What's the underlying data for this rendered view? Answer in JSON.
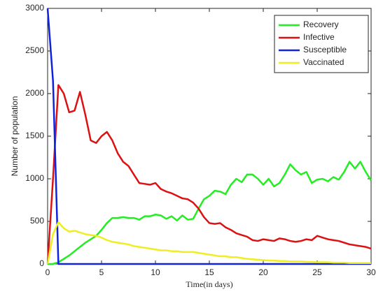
{
  "chart_data": {
    "type": "line",
    "xlabel": "Time(in days)",
    "ylabel": "Number of population",
    "x": [
      0,
      0.5,
      1,
      1.5,
      2,
      2.5,
      3,
      3.5,
      4,
      4.5,
      5,
      5.5,
      6,
      6.5,
      7,
      7.5,
      8,
      8.5,
      9,
      9.5,
      10,
      10.5,
      11,
      11.5,
      12,
      12.5,
      13,
      13.5,
      14,
      14.5,
      15,
      15.5,
      16,
      16.5,
      17,
      17.5,
      18,
      18.5,
      19,
      19.5,
      20,
      20.5,
      21,
      21.5,
      22,
      22.5,
      23,
      23.5,
      24,
      24.5,
      25,
      25.5,
      26,
      26.5,
      27,
      27.5,
      28,
      28.5,
      29,
      29.5,
      30
    ],
    "series": [
      {
        "name": "Recovery",
        "color": "#22ee22",
        "values": [
          0,
          0,
          20,
          60,
          100,
          150,
          200,
          250,
          290,
          330,
          400,
          480,
          540,
          540,
          550,
          540,
          540,
          520,
          560,
          560,
          580,
          570,
          530,
          560,
          510,
          570,
          520,
          530,
          650,
          760,
          800,
          860,
          850,
          820,
          930,
          1000,
          960,
          1050,
          1050,
          1000,
          930,
          1000,
          910,
          950,
          1050,
          1170,
          1100,
          1050,
          1080,
          950,
          990,
          1000,
          970,
          1020,
          990,
          1080,
          1200,
          1120,
          1200,
          1080,
          980
        ]
      },
      {
        "name": "Infective",
        "color": "#dd1111",
        "values": [
          0,
          1000,
          2100,
          2000,
          1780,
          1800,
          2020,
          1750,
          1450,
          1420,
          1500,
          1550,
          1450,
          1300,
          1200,
          1150,
          1050,
          950,
          940,
          930,
          950,
          880,
          850,
          830,
          800,
          770,
          760,
          720,
          650,
          550,
          480,
          470,
          480,
          430,
          400,
          360,
          340,
          320,
          280,
          270,
          290,
          280,
          270,
          300,
          290,
          270,
          260,
          270,
          290,
          280,
          330,
          310,
          290,
          280,
          270,
          250,
          230,
          220,
          210,
          200,
          180
        ]
      },
      {
        "name": "Susceptible",
        "color": "#1122dd",
        "values": [
          3000,
          2150,
          0,
          0,
          0,
          0,
          0,
          0,
          0,
          0,
          0,
          0,
          0,
          0,
          0,
          0,
          0,
          0,
          0,
          0,
          0,
          0,
          0,
          0,
          0,
          0,
          0,
          0,
          0,
          0,
          0,
          0,
          0,
          0,
          0,
          0,
          0,
          0,
          0,
          0,
          0,
          0,
          0,
          0,
          0,
          0,
          0,
          0,
          0,
          0,
          0,
          0,
          0,
          0,
          0,
          0,
          0,
          0,
          0,
          0,
          0
        ]
      },
      {
        "name": "Vaccinated",
        "color": "#eeee22",
        "values": [
          0,
          350,
          490,
          420,
          380,
          390,
          370,
          350,
          340,
          330,
          310,
          280,
          260,
          250,
          240,
          230,
          210,
          200,
          190,
          180,
          170,
          160,
          160,
          150,
          150,
          140,
          140,
          140,
          130,
          120,
          110,
          100,
          90,
          90,
          80,
          80,
          70,
          60,
          55,
          50,
          45,
          40,
          40,
          35,
          35,
          30,
          30,
          30,
          25,
          25,
          20,
          20,
          20,
          15,
          15,
          15,
          10,
          10,
          10,
          10,
          10
        ]
      }
    ],
    "xlim": [
      0,
      30
    ],
    "xticks": [
      0,
      5,
      10,
      15,
      20,
      25,
      30
    ],
    "ylim": [
      0,
      3000
    ],
    "yticks": [
      0,
      500,
      1000,
      1500,
      2000,
      2500,
      3000
    ],
    "legend": "northeast"
  }
}
